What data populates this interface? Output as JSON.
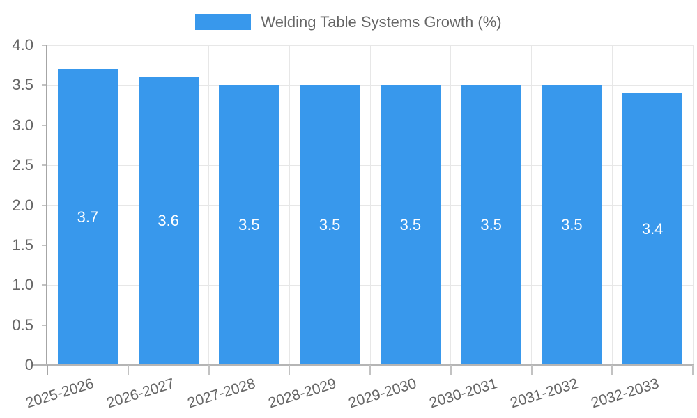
{
  "page": {
    "background": "#ffffff"
  },
  "chart_data": {
    "type": "bar",
    "title": "Welding Table Systems Growth (%)",
    "legend_position": "top",
    "categories": [
      "2025-2026",
      "2026-2027",
      "2027-2028",
      "2028-2029",
      "2029-2030",
      "2030-2031",
      "2031-2032",
      "2032-2033"
    ],
    "values": [
      3.7,
      3.6,
      3.5,
      3.5,
      3.5,
      3.5,
      3.5,
      3.4
    ],
    "bar_value_labels": [
      "3.7",
      "3.6",
      "3.5",
      "3.5",
      "3.5",
      "3.5",
      "3.5",
      "3.4"
    ],
    "xlabel": "",
    "ylabel": "",
    "ylim": [
      0,
      4
    ],
    "yticks": [
      0,
      0.5,
      1,
      1.5,
      2,
      2.5,
      3,
      3.5,
      4
    ],
    "ytick_labels": [
      "0",
      "0.5",
      "1.0",
      "1.5",
      "2.0",
      "2.5",
      "3.0",
      "3.5",
      "4.0"
    ],
    "grid": true,
    "x_label_rotation_deg": -17,
    "colors": {
      "bar": "#3898ec",
      "bar_label_text": "#ffffff",
      "legend_text": "#666666",
      "axis_text": "#666666",
      "gridline": "#e7e7e7",
      "y_axis_line": "#a6a6a6",
      "x_axis_line": "#b5b5b5",
      "tick_mark": "#c2c2c2"
    }
  }
}
